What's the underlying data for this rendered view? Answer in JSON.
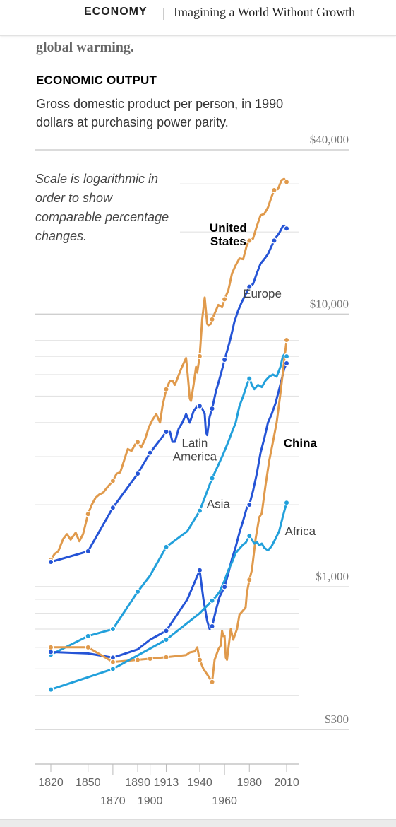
{
  "header": {
    "section": "ECONOMY",
    "article_title": "Imagining a World Without Growth"
  },
  "intro": {
    "text": "global warming."
  },
  "chart_header": {
    "kicker": "ECONOMIC OUTPUT",
    "subtitle": "Gross domestic product per person, in 1990 dollars at purchasing power parity.",
    "scale_note": "Scale is logarithmic in order to show comparable percentage changes."
  },
  "chart_data": {
    "type": "line",
    "title": "ECONOMIC OUTPUT",
    "subtitle": "Gross domestic product per person, in 1990 dollars at purchasing power parity.",
    "xlabel": "",
    "ylabel": "",
    "yscale": "log",
    "xlim": [
      1820,
      2010
    ],
    "ylim": [
      300,
      40000
    ],
    "yticks": [
      {
        "value": 40000,
        "label": "$40,000"
      },
      {
        "value": 10000,
        "label": "$10,000"
      },
      {
        "value": 1000,
        "label": "$1,000"
      },
      {
        "value": 300,
        "label": "$300"
      }
    ],
    "xticks_row1": [
      {
        "value": 1820,
        "label": "1820"
      },
      {
        "value": 1850,
        "label": "1850"
      },
      {
        "value": 1890,
        "label": "1890"
      },
      {
        "value": 1913,
        "label": "1913"
      },
      {
        "value": 1940,
        "label": "1940"
      },
      {
        "value": 1980,
        "label": "1980"
      },
      {
        "value": 2010,
        "label": "2010"
      }
    ],
    "xticks_row2": [
      {
        "value": 1870,
        "label": "1870"
      },
      {
        "value": 1900,
        "label": "1900"
      },
      {
        "value": 1960,
        "label": "1960"
      }
    ],
    "grid_values": [
      30000,
      20000,
      8000,
      7000,
      6000,
      5000,
      4000,
      3000,
      2000,
      900,
      800,
      700,
      600,
      500,
      400
    ],
    "grid": true,
    "legend": "none",
    "series": [
      {
        "name": "United States",
        "color": "#e09a4c",
        "label_weight": "bold",
        "values": [
          [
            1820,
            1257
          ],
          [
            1823,
            1320
          ],
          [
            1826,
            1350
          ],
          [
            1830,
            1500
          ],
          [
            1833,
            1560
          ],
          [
            1836,
            1490
          ],
          [
            1840,
            1580
          ],
          [
            1843,
            1470
          ],
          [
            1846,
            1560
          ],
          [
            1850,
            1849
          ],
          [
            1853,
            2000
          ],
          [
            1856,
            2120
          ],
          [
            1859,
            2180
          ],
          [
            1862,
            2210
          ],
          [
            1865,
            2300
          ],
          [
            1870,
            2445
          ],
          [
            1873,
            2600
          ],
          [
            1876,
            2630
          ],
          [
            1879,
            2900
          ],
          [
            1882,
            3200
          ],
          [
            1885,
            3150
          ],
          [
            1888,
            3330
          ],
          [
            1890,
            3392
          ],
          [
            1893,
            3250
          ],
          [
            1896,
            3480
          ],
          [
            1899,
            3850
          ],
          [
            1902,
            4100
          ],
          [
            1905,
            4300
          ],
          [
            1908,
            4000
          ],
          [
            1910,
            4600
          ],
          [
            1913,
            5301
          ],
          [
            1916,
            5700
          ],
          [
            1918,
            5700
          ],
          [
            1920,
            5500
          ],
          [
            1922,
            5800
          ],
          [
            1925,
            6300
          ],
          [
            1929,
            6899
          ],
          [
            1930,
            6200
          ],
          [
            1932,
            4900
          ],
          [
            1933,
            4800
          ],
          [
            1935,
            5500
          ],
          [
            1937,
            6400
          ],
          [
            1938,
            6100
          ],
          [
            1940,
            7010
          ],
          [
            1942,
            9600
          ],
          [
            1944,
            11500
          ],
          [
            1946,
            9200
          ],
          [
            1947,
            9100
          ],
          [
            1949,
            9200
          ],
          [
            1950,
            9561
          ],
          [
            1953,
            10300
          ],
          [
            1955,
            10800
          ],
          [
            1958,
            10600
          ],
          [
            1960,
            11328
          ],
          [
            1963,
            12200
          ],
          [
            1966,
            14100
          ],
          [
            1969,
            15100
          ],
          [
            1972,
            16000
          ],
          [
            1975,
            15900
          ],
          [
            1978,
            17900
          ],
          [
            1980,
            18577
          ],
          [
            1983,
            18900
          ],
          [
            1986,
            21000
          ],
          [
            1989,
            23000
          ],
          [
            1992,
            23300
          ],
          [
            1995,
            24600
          ],
          [
            1998,
            27000
          ],
          [
            2000,
            28467
          ],
          [
            2003,
            28700
          ],
          [
            2006,
            31000
          ],
          [
            2008,
            31300
          ],
          [
            2010,
            30491
          ]
        ]
      },
      {
        "name": "Europe",
        "color": "#2554d6",
        "label_weight": "normal",
        "values": [
          [
            1820,
            1234
          ],
          [
            1850,
            1350
          ],
          [
            1870,
            1950
          ],
          [
            1890,
            2600
          ],
          [
            1900,
            3100
          ],
          [
            1913,
            3700
          ],
          [
            1916,
            3700
          ],
          [
            1918,
            3400
          ],
          [
            1920,
            3400
          ],
          [
            1923,
            3800
          ],
          [
            1926,
            4000
          ],
          [
            1929,
            4300
          ],
          [
            1932,
            4000
          ],
          [
            1935,
            4400
          ],
          [
            1938,
            4600
          ],
          [
            1940,
            4600
          ],
          [
            1942,
            4500
          ],
          [
            1944,
            4300
          ],
          [
            1945,
            3700
          ],
          [
            1946,
            3600
          ],
          [
            1948,
            4200
          ],
          [
            1950,
            4500
          ],
          [
            1953,
            5200
          ],
          [
            1956,
            5800
          ],
          [
            1959,
            6500
          ],
          [
            1960,
            6800
          ],
          [
            1962,
            7300
          ],
          [
            1965,
            8200
          ],
          [
            1968,
            9400
          ],
          [
            1971,
            10300
          ],
          [
            1974,
            11100
          ],
          [
            1977,
            11800
          ],
          [
            1980,
            12600
          ],
          [
            1983,
            12900
          ],
          [
            1986,
            14100
          ],
          [
            1989,
            15300
          ],
          [
            1992,
            15900
          ],
          [
            1995,
            16600
          ],
          [
            1998,
            17800
          ],
          [
            2001,
            19000
          ],
          [
            2004,
            19800
          ],
          [
            2007,
            21000
          ],
          [
            2008,
            21100
          ],
          [
            2010,
            20600
          ]
        ]
      },
      {
        "name": "Latin America",
        "color": "#22a0db",
        "label_weight": "normal",
        "values": [
          [
            1820,
            564
          ],
          [
            1850,
            660
          ],
          [
            1870,
            700
          ],
          [
            1890,
            960
          ],
          [
            1900,
            1100
          ],
          [
            1913,
            1400
          ],
          [
            1930,
            1600
          ],
          [
            1940,
            1900
          ],
          [
            1950,
            2500
          ],
          [
            1955,
            2800
          ],
          [
            1958,
            3000
          ],
          [
            1960,
            3150
          ],
          [
            1963,
            3400
          ],
          [
            1966,
            3700
          ],
          [
            1969,
            4000
          ],
          [
            1972,
            4600
          ],
          [
            1975,
            5000
          ],
          [
            1978,
            5500
          ],
          [
            1980,
            5800
          ],
          [
            1982,
            5500
          ],
          [
            1984,
            5300
          ],
          [
            1987,
            5500
          ],
          [
            1990,
            5400
          ],
          [
            1993,
            5700
          ],
          [
            1996,
            5900
          ],
          [
            1999,
            6000
          ],
          [
            2002,
            5900
          ],
          [
            2005,
            6400
          ],
          [
            2007,
            7000
          ],
          [
            2008,
            7100
          ],
          [
            2010,
            7000
          ]
        ]
      },
      {
        "name": "Asia",
        "color": "#2554d6",
        "label_weight": "normal",
        "values": [
          [
            1820,
            577
          ],
          [
            1850,
            570
          ],
          [
            1870,
            550
          ],
          [
            1890,
            590
          ],
          [
            1900,
            640
          ],
          [
            1913,
            690
          ],
          [
            1930,
            900
          ],
          [
            1940,
            1150
          ],
          [
            1943,
            900
          ],
          [
            1946,
            750
          ],
          [
            1948,
            700
          ],
          [
            1950,
            717
          ],
          [
            1953,
            820
          ],
          [
            1956,
            920
          ],
          [
            1960,
            1000
          ],
          [
            1963,
            1120
          ],
          [
            1966,
            1270
          ],
          [
            1969,
            1400
          ],
          [
            1972,
            1580
          ],
          [
            1975,
            1750
          ],
          [
            1978,
            1950
          ],
          [
            1980,
            2000
          ],
          [
            1983,
            2250
          ],
          [
            1986,
            2600
          ],
          [
            1989,
            3100
          ],
          [
            1992,
            3500
          ],
          [
            1995,
            4000
          ],
          [
            1998,
            4300
          ],
          [
            2001,
            4700
          ],
          [
            2004,
            5300
          ],
          [
            2007,
            6000
          ],
          [
            2008,
            6300
          ],
          [
            2010,
            6600
          ]
        ]
      },
      {
        "name": "China",
        "color": "#e09a4c",
        "label_weight": "bold",
        "values": [
          [
            1820,
            600
          ],
          [
            1850,
            600
          ],
          [
            1870,
            530
          ],
          [
            1890,
            540
          ],
          [
            1900,
            545
          ],
          [
            1913,
            552
          ],
          [
            1929,
            562
          ],
          [
            1932,
            575
          ],
          [
            1936,
            580
          ],
          [
            1938,
            600
          ],
          [
            1940,
            540
          ],
          [
            1943,
            500
          ],
          [
            1947,
            470
          ],
          [
            1950,
            448
          ],
          [
            1952,
            540
          ],
          [
            1955,
            590
          ],
          [
            1957,
            610
          ],
          [
            1958,
            690
          ],
          [
            1959,
            660
          ],
          [
            1960,
            662
          ],
          [
            1961,
            550
          ],
          [
            1962,
            540
          ],
          [
            1965,
            700
          ],
          [
            1967,
            640
          ],
          [
            1970,
            700
          ],
          [
            1972,
            790
          ],
          [
            1975,
            820
          ],
          [
            1977,
            840
          ],
          [
            1978,
            950
          ],
          [
            1980,
            1061
          ],
          [
            1982,
            1150
          ],
          [
            1985,
            1500
          ],
          [
            1988,
            1800
          ],
          [
            1990,
            1858
          ],
          [
            1993,
            2350
          ],
          [
            1996,
            2900
          ],
          [
            1999,
            3400
          ],
          [
            2002,
            4000
          ],
          [
            2005,
            5100
          ],
          [
            2008,
            6700
          ],
          [
            2010,
            8032
          ]
        ]
      },
      {
        "name": "Africa",
        "color": "#22a0db",
        "label_weight": "normal",
        "values": [
          [
            1820,
            420
          ],
          [
            1870,
            500
          ],
          [
            1913,
            640
          ],
          [
            1940,
            800
          ],
          [
            1950,
            890
          ],
          [
            1953,
            920
          ],
          [
            1956,
            960
          ],
          [
            1960,
            1055
          ],
          [
            1963,
            1150
          ],
          [
            1966,
            1230
          ],
          [
            1969,
            1330
          ],
          [
            1972,
            1380
          ],
          [
            1975,
            1430
          ],
          [
            1977,
            1450
          ],
          [
            1980,
            1536
          ],
          [
            1982,
            1490
          ],
          [
            1984,
            1440
          ],
          [
            1986,
            1460
          ],
          [
            1988,
            1420
          ],
          [
            1990,
            1440
          ],
          [
            1992,
            1390
          ],
          [
            1995,
            1360
          ],
          [
            1998,
            1410
          ],
          [
            2001,
            1500
          ],
          [
            2004,
            1600
          ],
          [
            2007,
            1810
          ],
          [
            2010,
            2034
          ]
        ]
      }
    ],
    "markers": [
      {
        "series": "United States",
        "years": [
          1820,
          1850,
          1870,
          1890,
          1913,
          1940,
          1950,
          1960,
          1980,
          2000,
          2010
        ]
      },
      {
        "series": "Europe",
        "years": [
          1820,
          1850,
          1870,
          1890,
          1900,
          1913,
          1940,
          1950,
          1960,
          1980,
          2000,
          2010
        ]
      },
      {
        "series": "Latin America",
        "years": [
          1820,
          1850,
          1870,
          1890,
          1913,
          1940,
          1950,
          1980,
          2010
        ]
      },
      {
        "series": "Asia",
        "years": [
          1820,
          1870,
          1913,
          1940,
          1950,
          1960,
          1980,
          2010
        ]
      },
      {
        "series": "China",
        "years": [
          1820,
          1850,
          1870,
          1890,
          1900,
          1913,
          1940,
          1950,
          1980,
          2010
        ]
      },
      {
        "series": "Africa",
        "years": [
          1820,
          1870,
          1913,
          1950,
          1980,
          2010
        ]
      }
    ]
  }
}
